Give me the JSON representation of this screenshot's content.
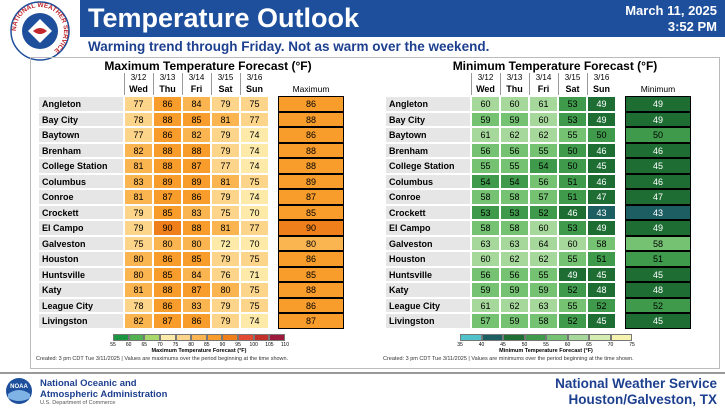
{
  "header": {
    "title": "Temperature Outlook",
    "date": "March 11, 2025",
    "time": "3:52 PM",
    "subtitle": "Warming trend through Friday. Not as warm over the weekend.",
    "logo_text": "NATIONAL WEATHER SERVICE"
  },
  "tables": [
    {
      "title": "Maximum Temperature Forecast (°F)",
      "dates": [
        "3/12",
        "3/13",
        "3/14",
        "3/15",
        "3/16"
      ],
      "days": [
        "Wed",
        "Thu",
        "Fri",
        "Sat",
        "Sun"
      ],
      "summary_header": "Maximum",
      "rows": [
        {
          "name": "Angleton",
          "values": [
            77,
            86,
            84,
            79,
            75
          ],
          "summary": 86
        },
        {
          "name": "Bay City",
          "values": [
            78,
            88,
            85,
            81,
            77
          ],
          "summary": 88
        },
        {
          "name": "Baytown",
          "values": [
            77,
            86,
            82,
            79,
            74
          ],
          "summary": 86
        },
        {
          "name": "Brenham",
          "values": [
            82,
            88,
            88,
            79,
            74
          ],
          "summary": 88
        },
        {
          "name": "College Station",
          "values": [
            81,
            88,
            87,
            77,
            74
          ],
          "summary": 88
        },
        {
          "name": "Columbus",
          "values": [
            83,
            89,
            89,
            81,
            75
          ],
          "summary": 89
        },
        {
          "name": "Conroe",
          "values": [
            81,
            87,
            86,
            79,
            74
          ],
          "summary": 87
        },
        {
          "name": "Crockett",
          "values": [
            79,
            85,
            83,
            75,
            70
          ],
          "summary": 85
        },
        {
          "name": "El Campo",
          "values": [
            79,
            90,
            88,
            81,
            77
          ],
          "summary": 90
        },
        {
          "name": "Galveston",
          "values": [
            75,
            80,
            80,
            72,
            70
          ],
          "summary": 80
        },
        {
          "name": "Houston",
          "values": [
            80,
            86,
            85,
            79,
            75
          ],
          "summary": 86
        },
        {
          "name": "Huntsville",
          "values": [
            80,
            85,
            84,
            76,
            71
          ],
          "summary": 85
        },
        {
          "name": "Katy",
          "values": [
            81,
            88,
            87,
            80,
            75
          ],
          "summary": 88
        },
        {
          "name": "League City",
          "values": [
            78,
            86,
            83,
            79,
            75
          ],
          "summary": 86
        },
        {
          "name": "Livingston",
          "values": [
            82,
            87,
            86,
            79,
            74
          ],
          "summary": 87
        }
      ],
      "legend": {
        "ticks": [
          55,
          60,
          65,
          70,
          75,
          80,
          85,
          90,
          95,
          100,
          105,
          110
        ],
        "colors": [
          "#1a9641",
          "#52b151",
          "#a6d96a",
          "#fde9a8",
          "#fdd58a",
          "#fbb550",
          "#f89c2c",
          "#ef7f1a",
          "#e34a33",
          "#c2302a",
          "#9e1a3c"
        ],
        "label": "Maximum Temperature Forecast (°F)"
      },
      "footnote": "Created: 3 pm CDT Tue 3/11/2025  |  Values are maximums over the period beginning at the time shown."
    },
    {
      "title": "Minimum Temperature Forecast (°F)",
      "dates": [
        "3/12",
        "3/13",
        "3/14",
        "3/15",
        "3/16"
      ],
      "days": [
        "Wed",
        "Thu",
        "Fri",
        "Sat",
        "Sun"
      ],
      "summary_header": "Minimum",
      "rows": [
        {
          "name": "Angleton",
          "values": [
            60,
            60,
            61,
            53,
            49
          ],
          "summary": 49
        },
        {
          "name": "Bay City",
          "values": [
            59,
            59,
            60,
            53,
            49
          ],
          "summary": 49
        },
        {
          "name": "Baytown",
          "values": [
            61,
            62,
            62,
            55,
            50
          ],
          "summary": 50
        },
        {
          "name": "Brenham",
          "values": [
            56,
            56,
            55,
            50,
            46
          ],
          "summary": 46
        },
        {
          "name": "College Station",
          "values": [
            55,
            55,
            54,
            50,
            45
          ],
          "summary": 45
        },
        {
          "name": "Columbus",
          "values": [
            54,
            54,
            56,
            51,
            46
          ],
          "summary": 46
        },
        {
          "name": "Conroe",
          "values": [
            58,
            58,
            57,
            51,
            47
          ],
          "summary": 47
        },
        {
          "name": "Crockett",
          "values": [
            53,
            53,
            52,
            46,
            43
          ],
          "summary": 43
        },
        {
          "name": "El Campo",
          "values": [
            58,
            58,
            60,
            53,
            49
          ],
          "summary": 49
        },
        {
          "name": "Galveston",
          "values": [
            63,
            63,
            64,
            60,
            58
          ],
          "summary": 58
        },
        {
          "name": "Houston",
          "values": [
            60,
            62,
            62,
            55,
            51
          ],
          "summary": 51
        },
        {
          "name": "Huntsville",
          "values": [
            56,
            56,
            55,
            49,
            45
          ],
          "summary": 45
        },
        {
          "name": "Katy",
          "values": [
            59,
            59,
            59,
            52,
            48
          ],
          "summary": 48
        },
        {
          "name": "League City",
          "values": [
            61,
            62,
            63,
            55,
            52
          ],
          "summary": 52
        },
        {
          "name": "Livingston",
          "values": [
            57,
            59,
            58,
            52,
            45
          ],
          "summary": 45
        }
      ],
      "legend": {
        "ticks": [
          35,
          40,
          45,
          50,
          55,
          60,
          65,
          70,
          75
        ],
        "colors": [
          "#4fc3c9",
          "#1d5e63",
          "#1e6e34",
          "#3f9b4b",
          "#75c273",
          "#a7d89b",
          "#d5ecb2",
          "#f6f3b0"
        ],
        "label": "Minimum Temperature Forecast (°F)"
      },
      "footnote": "Created: 3 pm CDT Tue 3/11/2025  |  Values are minimums over the period beginning at the time shown."
    }
  ],
  "footer": {
    "noaa_logo": "NOAA",
    "agency": [
      "National Oceanic and",
      "Atmospheric Administration"
    ],
    "department": "U.S. Department of Commerce",
    "office": [
      "National Weather Service",
      "Houston/Galveston, TX"
    ]
  }
}
